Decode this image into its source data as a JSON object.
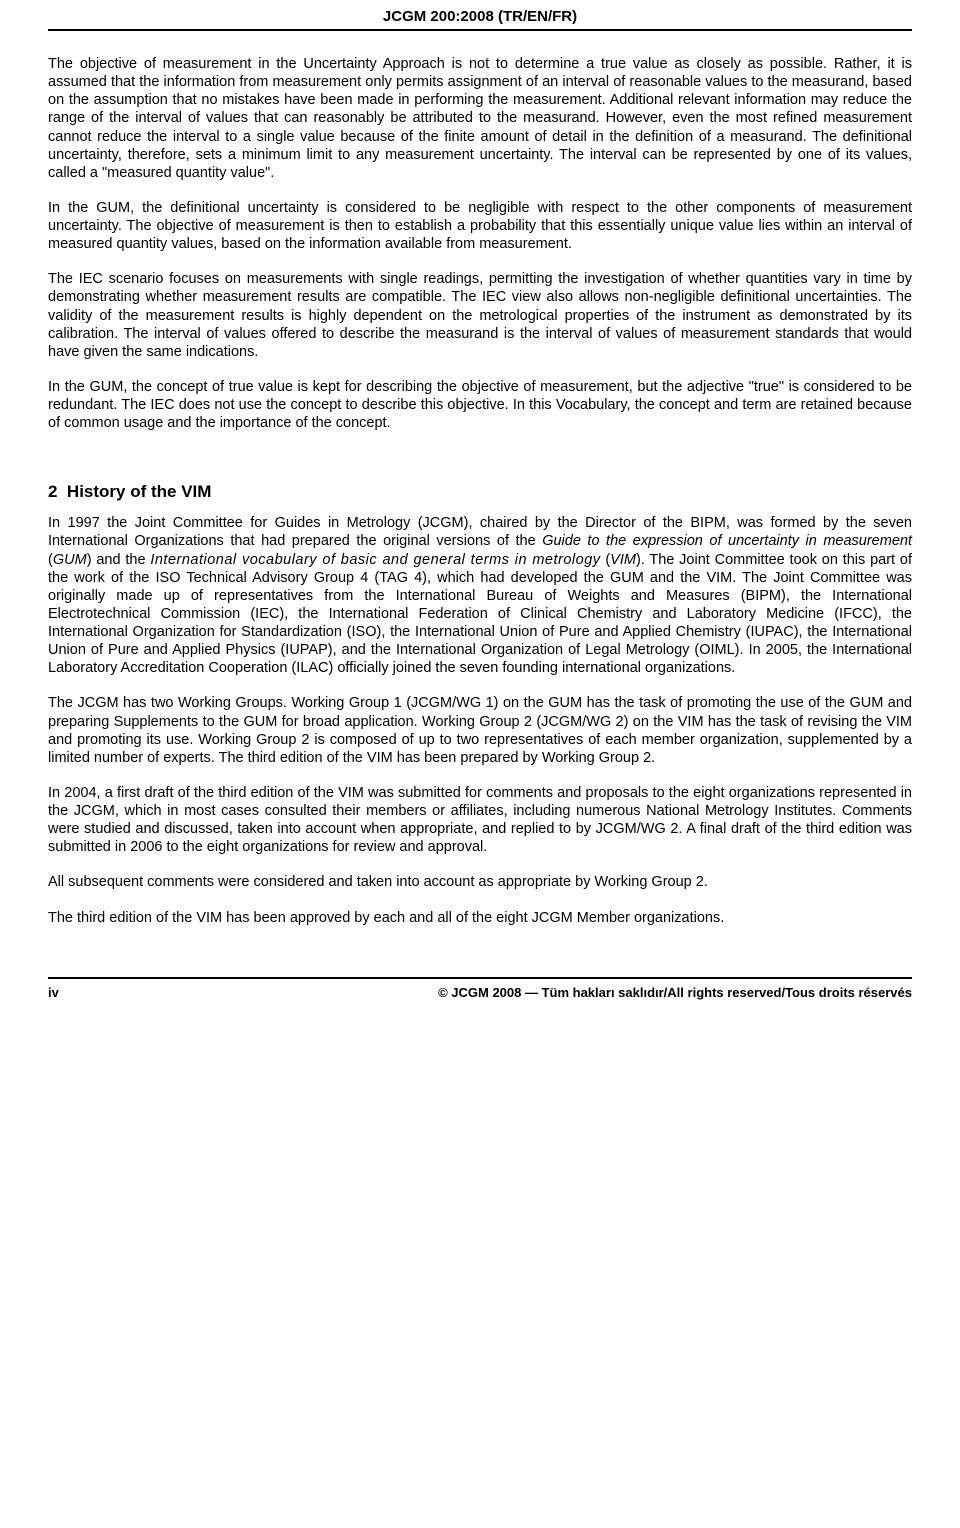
{
  "header": {
    "title": "JCGM 200:2008 (TR/EN/FR)"
  },
  "paragraphs": {
    "p1": "The objective of measurement in the Uncertainty Approach is not to determine a true value as closely as possible. Rather, it is assumed that the information from measurement only permits assignment of an interval of reasonable values to the measurand, based on the assumption that no mistakes have been made in performing the measurement. Additional relevant information may reduce the range of the interval of values that can reasonably be attributed to the measurand. However, even the most refined measurement cannot reduce the interval to a single value because of the finite amount of detail in the definition of a measurand. The definitional uncertainty, therefore, sets a minimum limit to any measurement uncertainty. The interval can be represented by one of its values, called a \"measured quantity value\".",
    "p2": "In the GUM, the definitional uncertainty is considered to be negligible with respect to the other components of measurement uncertainty. The objective of measurement is then to establish a probability that this essentially unique value lies within an interval of measured quantity values, based on the information available from measurement.",
    "p3": "The IEC scenario focuses on measurements with single readings, permitting the investigation of whether quantities vary in time by demonstrating whether measurement results are compatible. The IEC view also allows non-negligible definitional uncertainties. The validity of the measurement results is highly dependent on the metrological properties of the instrument as demonstrated by its calibration. The interval of values offered to describe the measurand is the interval of values of measurement standards that would have given the same indications.",
    "p4": "In the GUM, the concept of true value is kept for describing the objective of measurement, but the adjective \"true\" is considered to be redundant. The IEC does not use the concept to describe this objective. In this Vocabulary, the concept and term are retained because of common usage and the importance of the concept."
  },
  "section2": {
    "number": "2",
    "title": "History of the VIM",
    "p1_a": "In 1997 the Joint Committee for Guides in Metrology (JCGM), chaired by the Director of the BIPM, was formed by the seven International Organizations that had prepared the original versions of the ",
    "p1_i1": "Guide to the expression of uncertainty in measurement",
    "p1_b": " (",
    "p1_i2": "GUM",
    "p1_c": ") and the ",
    "p1_i3": "International vocabulary of basic and general terms in metrology",
    "p1_d": " (",
    "p1_i4": "VIM",
    "p1_e": "). The Joint Committee took on this part of the work of the ISO Technical Advisory Group 4 (TAG 4), which had developed the GUM and the VIM. The Joint Committee was originally made up of representatives from the International Bureau of Weights and Measures (BIPM), the International Electrotechnical Commission (IEC), the International Federation of Clinical Chemistry and Laboratory Medicine (IFCC), the International Organization for Standardization (ISO), the International Union of Pure and Applied Chemistry (IUPAC), the International Union of Pure and Applied Physics (IUPAP), and the International Organization of Legal Metrology (OIML). In 2005, the International Laboratory Accreditation Cooperation (ILAC) officially joined the seven founding international organizations.",
    "p2": "The JCGM has two Working Groups. Working Group 1 (JCGM/WG 1) on the GUM has the task of promoting the use of the GUM and preparing Supplements to the GUM for broad application. Working Group 2 (JCGM/WG 2) on the VIM has the task of revising the VIM and promoting its use. Working Group 2 is composed of up to two representatives of each member organization, supplemented by a limited number of experts. The third edition of the VIM has been prepared by Working Group 2.",
    "p3": "In 2004, a first draft of the third edition of the VIM was submitted for comments and proposals to the eight organizations represented in the JCGM, which in most cases consulted their members or affiliates, including numerous National Metrology Institutes. Comments were studied and discussed, taken into account when appropriate, and replied to by JCGM/WG 2. A final draft of the third edition was submitted in 2006 to the eight organizations for review and approval.",
    "p4": "All subsequent comments were considered and taken into account as appropriate by Working Group 2.",
    "p5": "The third edition of the VIM has been approved by each and all of the eight JCGM Member organizations."
  },
  "footer": {
    "page_num": "iv",
    "copyright": "© JCGM 2008 ― Tüm hakları saklıdır/All rights reserved/Tous droits réservés"
  }
}
